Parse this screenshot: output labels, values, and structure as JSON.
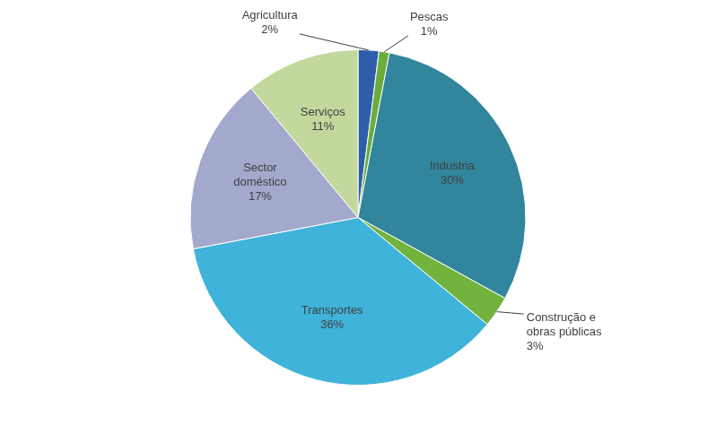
{
  "chart_data": {
    "type": "pie",
    "categories": [
      "Agricultura",
      "Pescas",
      "Industria",
      "Construção e obras públicas",
      "Transportes",
      "Sector doméstico",
      "Serviços"
    ],
    "values": [
      2,
      1,
      30,
      3,
      36,
      17,
      11
    ],
    "value_labels": [
      "2%",
      "1%",
      "30%",
      "3%",
      "36%",
      "17%",
      "11%"
    ],
    "colors": [
      "#2e5ea8",
      "#6aad3d",
      "#31859c",
      "#72b33e",
      "#3fb3d9",
      "#a3a9cc",
      "#c3d89c"
    ],
    "data_labels": true,
    "legend": false
  }
}
